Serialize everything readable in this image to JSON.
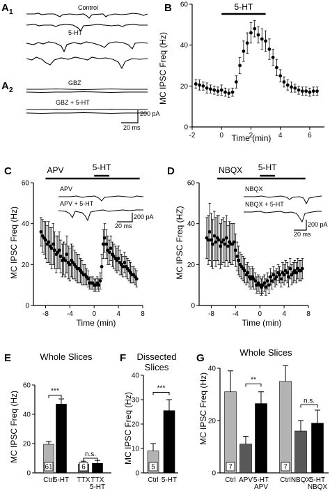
{
  "panel_labels": {
    "A1": "A",
    "A1_sub": "1",
    "A2": "A",
    "A2_sub": "2",
    "B": "B",
    "C": "C",
    "D": "D",
    "E": "E",
    "F": "F",
    "G": "G"
  },
  "traces": {
    "A1": {
      "labels": [
        "Control",
        "5-HT"
      ]
    },
    "A2": {
      "labels": [
        "GBZ",
        "GBZ + 5-HT"
      ],
      "scale_y": "200 pA",
      "scale_x": "20 ms"
    },
    "C": {
      "labels": [
        "APV",
        "APV + 5-HT"
      ],
      "scale_y": "200 pA",
      "scale_x": "20 ms"
    },
    "D": {
      "labels": [
        "NBQX",
        "NBQX + 5-HT"
      ],
      "scale_y": "200 pA",
      "scale_x": "20 ms"
    }
  },
  "chart_data": [
    {
      "id": "B",
      "type": "scatter",
      "title": "",
      "xlabel": "Time (min)",
      "ylabel": "MC IPSC Freq (Hz)",
      "xlim": [
        -2,
        7
      ],
      "ylim": [
        0,
        60
      ],
      "xticks": [
        -2,
        0,
        2,
        4,
        6
      ],
      "yticks": [
        0,
        20,
        40,
        60
      ],
      "bars": [
        {
          "label": "5-HT",
          "from": 0,
          "to": 3
        }
      ],
      "series": [
        {
          "x": [
            -1.75,
            -1.5,
            -1.25,
            -1.0,
            -0.75,
            -0.5,
            -0.25,
            0.0,
            0.25,
            0.5,
            0.75,
            1.0,
            1.25,
            1.5,
            1.75,
            2.0,
            2.25,
            2.5,
            2.75,
            3.0,
            3.25,
            3.5,
            3.75,
            4.0,
            4.25,
            4.5,
            4.75,
            5.0,
            5.25,
            5.5,
            5.75,
            6.0,
            6.25,
            6.5
          ],
          "y": [
            21,
            20.5,
            20,
            19,
            18.5,
            18,
            17.5,
            18,
            17,
            16.5,
            17,
            22,
            30,
            37,
            41,
            46,
            48,
            45,
            43,
            42,
            38,
            34,
            29,
            25,
            22,
            20.5,
            19.5,
            19,
            18,
            17.5,
            17.5,
            17,
            17.5,
            17.5
          ],
          "err": [
            2,
            2.5,
            2,
            2.5,
            2,
            2,
            2,
            2.5,
            2,
            2,
            2,
            3,
            4,
            5,
            5,
            5,
            4,
            4,
            5,
            5,
            5,
            4,
            4,
            3,
            2.5,
            2.5,
            2.5,
            2,
            2,
            2,
            2,
            2,
            2,
            2
          ]
        }
      ]
    },
    {
      "id": "C",
      "type": "scatter",
      "title": "",
      "xlabel": "Time (min)",
      "ylabel": "MC IPSC Freq (Hz)",
      "xlim": [
        -10,
        8
      ],
      "ylim": [
        0,
        60
      ],
      "xticks": [
        -8,
        -4,
        0,
        4,
        8
      ],
      "yticks": [
        0,
        20,
        40,
        60
      ],
      "bars": [
        {
          "label": "APV",
          "from": -8,
          "to": 7.5
        },
        {
          "label": "5-HT",
          "from": 0,
          "to": 2.5
        }
      ],
      "series": [
        {
          "x": [
            -8.75,
            -8.5,
            -8.25,
            -8.0,
            -7.75,
            -7.5,
            -7.25,
            -7.0,
            -6.75,
            -6.5,
            -6.25,
            -6.0,
            -5.75,
            -5.5,
            -5.25,
            -5.0,
            -4.75,
            -4.5,
            -4.25,
            -4.0,
            -3.75,
            -3.5,
            -3.25,
            -3.0,
            -2.75,
            -2.5,
            -2.25,
            -2.0,
            -1.75,
            -1.5,
            -1.25,
            -1.0,
            -0.75,
            -0.5,
            -0.25,
            0.0,
            0.25,
            0.5,
            0.75,
            1.0,
            1.25,
            1.5,
            1.75,
            2.0,
            2.25,
            2.5,
            2.75,
            3.0,
            3.25,
            3.5,
            3.75,
            4.0,
            4.25,
            4.5,
            4.75,
            5.0,
            5.25,
            5.5,
            5.75,
            6.0,
            6.25,
            6.5,
            6.75,
            7.0
          ],
          "y": [
            36,
            34,
            33,
            32,
            30,
            31,
            29,
            28,
            30,
            27,
            25,
            26,
            27,
            24,
            22,
            23,
            22,
            25,
            21,
            20,
            22,
            21,
            20,
            19,
            18,
            18,
            17,
            16,
            15,
            15,
            14,
            13,
            11,
            11,
            11,
            10,
            10,
            11,
            10,
            12,
            19,
            30,
            33,
            30,
            27,
            26,
            28,
            25,
            24,
            23,
            22,
            23,
            21,
            20,
            19,
            21,
            19,
            18,
            17,
            16,
            15,
            15,
            14,
            13
          ],
          "err": [
            7,
            8,
            8,
            9,
            9,
            10,
            9,
            10,
            10,
            9,
            9,
            8,
            9,
            8,
            8,
            8,
            8,
            9,
            8,
            8,
            8,
            8,
            7,
            7,
            7,
            7,
            6,
            6,
            5,
            5,
            4,
            4,
            3,
            3,
            3,
            3,
            3,
            3,
            3,
            4,
            6,
            7,
            7,
            7,
            7,
            6,
            6,
            6,
            6,
            6,
            6,
            6,
            6,
            5,
            5,
            5,
            5,
            5,
            5,
            5,
            4,
            4,
            4,
            4
          ]
        }
      ]
    },
    {
      "id": "D",
      "type": "scatter",
      "title": "",
      "xlabel": "Time (min)",
      "ylabel": "MC IPSC Freq (HZ)",
      "xlim": [
        -10,
        8
      ],
      "ylim": [
        0,
        60
      ],
      "xticks": [
        -8,
        -4,
        0,
        4,
        8
      ],
      "yticks": [
        0,
        20,
        40,
        60
      ],
      "bars": [
        {
          "label": "NBQX",
          "from": -7,
          "to": 7.5
        },
        {
          "label": "5-HT",
          "from": 0,
          "to": 2.5
        }
      ],
      "series": [
        {
          "x": [
            -8.75,
            -8.5,
            -8.25,
            -8.0,
            -7.75,
            -7.5,
            -7.25,
            -7.0,
            -6.75,
            -6.5,
            -6.25,
            -6.0,
            -5.75,
            -5.5,
            -5.25,
            -5.0,
            -4.75,
            -4.5,
            -4.25,
            -4.0,
            -3.75,
            -3.5,
            -3.25,
            -3.0,
            -2.75,
            -2.5,
            -2.25,
            -2.0,
            -1.75,
            -1.5,
            -1.25,
            -1.0,
            -0.75,
            -0.5,
            -0.25,
            0.0,
            0.25,
            0.5,
            0.75,
            1.0,
            1.25,
            1.5,
            1.75,
            2.0,
            2.25,
            2.5,
            2.75,
            3.0,
            3.25,
            3.5,
            3.75,
            4.0,
            4.25,
            4.5,
            4.75,
            5.0,
            5.25,
            5.5,
            5.75,
            6.0,
            6.25,
            6.5,
            6.75,
            7.0
          ],
          "y": [
            33,
            32,
            36,
            32,
            30,
            34,
            31,
            33,
            32,
            29,
            31,
            32,
            30,
            33,
            29,
            31,
            30,
            30,
            31,
            27,
            24,
            22,
            20,
            19,
            18,
            17,
            15,
            16,
            14,
            13,
            14,
            13,
            12,
            10,
            11,
            10,
            9,
            10,
            11,
            9,
            12,
            10,
            14,
            12,
            15,
            13,
            14,
            16,
            15,
            13,
            16,
            15,
            17,
            16,
            14,
            18,
            15,
            16,
            17,
            16,
            18,
            17,
            17,
            18
          ],
          "err": [
            10,
            12,
            14,
            13,
            12,
            12,
            12,
            11,
            12,
            11,
            11,
            11,
            11,
            11,
            10,
            10,
            10,
            10,
            9,
            8,
            7,
            7,
            6,
            6,
            6,
            6,
            5,
            5,
            5,
            5,
            5,
            5,
            4,
            4,
            4,
            4,
            4,
            4,
            4,
            4,
            4,
            4,
            4,
            4,
            4,
            4,
            4,
            4,
            4,
            4,
            5,
            5,
            5,
            5,
            5,
            5,
            5,
            5,
            5,
            5,
            5,
            5,
            5,
            5
          ]
        }
      ]
    },
    {
      "id": "E",
      "type": "bar",
      "title": "Whole Slices",
      "ylabel": "MC IPSC Freq (Hz)",
      "ylim": [
        0,
        60
      ],
      "yticks": [
        0,
        20,
        40,
        60
      ],
      "categories": [
        "Ctrl",
        "5-HT",
        "TTX",
        "TTX\n5-HT"
      ],
      "values": [
        19.5,
        47,
        6,
        6.5
      ],
      "errors": [
        2,
        3.5,
        2,
        2
      ],
      "colors": [
        "#b3b3b3",
        "#000000",
        "#595959",
        "#000000"
      ],
      "n_labels": [
        {
          "bar": 0,
          "text": "61"
        },
        {
          "bar": 2,
          "text": "6"
        }
      ],
      "significance": [
        {
          "from": 0,
          "to": 1,
          "label": "***",
          "y": 53
        },
        {
          "from": 2,
          "to": 3,
          "label": "n.s.",
          "y": 10
        }
      ]
    },
    {
      "id": "F",
      "type": "bar",
      "title": "Dissected Slices",
      "ylabel": "MC IPSC Freq (Hz)",
      "ylim": [
        0,
        40
      ],
      "yticks": [
        0,
        10,
        20,
        30,
        40
      ],
      "categories": [
        "Ctrl",
        "5-HT"
      ],
      "values": [
        9,
        25.5
      ],
      "errors": [
        3,
        4.5
      ],
      "colors": [
        "#b3b3b3",
        "#000000"
      ],
      "n_labels": [
        {
          "bar": 0,
          "text": "5"
        }
      ],
      "significance": [
        {
          "from": 0,
          "to": 1,
          "label": "***",
          "y": 33
        }
      ]
    },
    {
      "id": "G",
      "type": "bar",
      "title": "Whole Slices",
      "ylabel": "MC IPSC Freq (Hz)",
      "ylim": [
        0,
        40
      ],
      "yticks": [
        0,
        20,
        40
      ],
      "categories": [
        "Ctrl",
        "APV",
        "5-HT\nAPV",
        "Ctrl",
        "NBQX",
        "5-HT\nNBQX"
      ],
      "values": [
        31,
        11,
        26.5,
        35,
        16,
        19
      ],
      "errors": [
        8,
        3,
        4.5,
        6,
        4,
        5
      ],
      "colors": [
        "#b3b3b3",
        "#595959",
        "#000000",
        "#b3b3b3",
        "#595959",
        "#000000"
      ],
      "n_labels": [
        {
          "bar": 0,
          "text": "7"
        },
        {
          "bar": 3,
          "text": "7"
        }
      ],
      "significance": [
        {
          "from": 1,
          "to": 2,
          "label": "**",
          "y": 34
        },
        {
          "from": 4,
          "to": 5,
          "label": "n.s.",
          "y": 26
        }
      ]
    }
  ]
}
